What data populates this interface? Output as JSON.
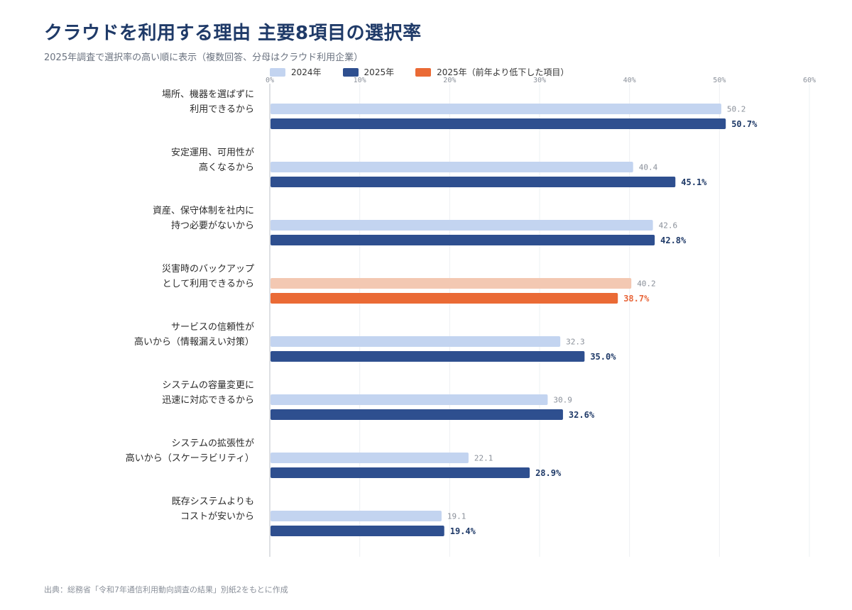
{
  "title": "クラウドを利用する理由 主要8項目の選択率",
  "subtitle": "2025年調査で選択率の高い順に表示（複数回答、分母はクラウド利用企業）",
  "source": "出典：総務省「令和7年通信利用動向調査の結果」別紙2をもとに作成",
  "legend": [
    {
      "label": "2024年",
      "color": "#c3d4f0"
    },
    {
      "label": "2025年",
      "color": "#2e4f8f"
    },
    {
      "label": "2025年（前年より低下した項目）",
      "color": "#ea6a35"
    }
  ],
  "colors": {
    "prev": "#c3d4f0",
    "cur": "#2e4f8f",
    "decline_cur": "#ea6a35",
    "decline_prev": "#f3c8b2",
    "grid": "#eef0f3",
    "axis": "#c9ccd2"
  },
  "chart_data": {
    "type": "bar",
    "orientation": "horizontal",
    "categories": [
      [
        "場所、機器を選ばずに",
        "利用できるから"
      ],
      [
        "安定運用、可用性が",
        "高くなるから"
      ],
      [
        "資産、保守体制を社内に",
        "持つ必要がないから"
      ],
      [
        "災害時のバックアップ",
        "として利用できるから"
      ],
      [
        "サービスの信頼性が",
        "高いから（情報漏えい対策）"
      ],
      [
        "システムの容量変更に",
        "迅速に対応できるから"
      ],
      [
        "システムの拡張性が",
        "高いから（スケーラビリティ）"
      ],
      [
        "既存システムよりも",
        "コストが安いから"
      ]
    ],
    "series": [
      {
        "name": "2024年",
        "values": [
          50.2,
          40.4,
          42.6,
          40.2,
          32.3,
          30.9,
          22.1,
          19.1
        ],
        "labels": [
          "50.2",
          "40.4",
          "42.6",
          "40.2",
          "32.3",
          "30.9",
          "22.1",
          "19.1"
        ]
      },
      {
        "name": "2025年",
        "values": [
          50.7,
          45.1,
          42.8,
          38.7,
          35.0,
          32.6,
          28.9,
          19.4
        ],
        "labels": [
          "50.7%",
          "45.1%",
          "42.8%",
          "38.7%",
          "35.0%",
          "32.6%",
          "28.9%",
          "19.4%"
        ]
      }
    ],
    "declined": [
      false,
      false,
      false,
      true,
      false,
      false,
      false,
      false
    ],
    "xlim": [
      0,
      60
    ],
    "xticks": [
      0,
      10,
      20,
      30,
      40,
      50,
      60
    ],
    "xtick_labels": [
      "0%",
      "10%",
      "20%",
      "30%",
      "40%",
      "50%",
      "60%"
    ],
    "grid": true,
    "legend_position": "top-left"
  }
}
